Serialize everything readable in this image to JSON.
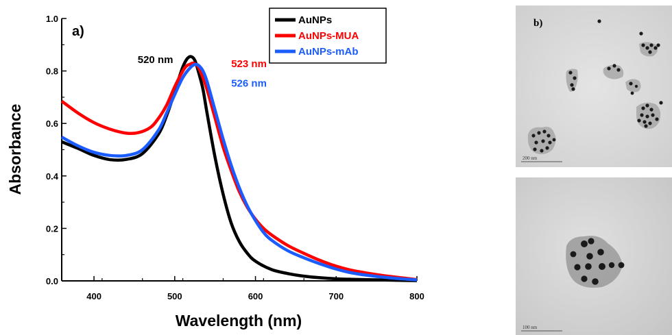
{
  "chart_data": {
    "type": "line",
    "panel_label": "a)",
    "xlabel": "Wavelength (nm)",
    "ylabel": "Absorbance",
    "xlim": [
      360,
      800
    ],
    "ylim": [
      0,
      1.0
    ],
    "x_ticks": [
      400,
      500,
      600,
      700,
      800
    ],
    "x_tick_labels": [
      "400",
      "500",
      "600",
      "700",
      "800"
    ],
    "y_ticks": [
      0.0,
      0.2,
      0.4,
      0.6,
      0.8,
      1.0
    ],
    "y_tick_labels": [
      "0.0",
      "0.2",
      "0.4",
      "0.6",
      "0.8",
      "1.0"
    ],
    "grid": false,
    "legend_position": "top-right",
    "series": [
      {
        "name": "AuNPs",
        "color": "#000000",
        "x": [
          360,
          380,
          400,
          420,
          440,
          460,
          480,
          490,
          500,
          505,
          510,
          515,
          520,
          525,
          530,
          535,
          540,
          550,
          560,
          570,
          580,
          590,
          600,
          620,
          640,
          660,
          680,
          700,
          720,
          750,
          780,
          800
        ],
        "y": [
          0.53,
          0.505,
          0.478,
          0.462,
          0.463,
          0.485,
          0.56,
          0.63,
          0.72,
          0.77,
          0.815,
          0.845,
          0.855,
          0.84,
          0.79,
          0.73,
          0.64,
          0.47,
          0.33,
          0.22,
          0.15,
          0.105,
          0.075,
          0.043,
          0.028,
          0.018,
          0.012,
          0.008,
          0.006,
          0.004,
          0.002,
          0.001
        ]
      },
      {
        "name": "AuNPs-MUA",
        "color": "#ff0000",
        "x": [
          360,
          380,
          400,
          420,
          440,
          455,
          470,
          480,
          490,
          500,
          510,
          515,
          520,
          523,
          528,
          533,
          540,
          550,
          560,
          570,
          580,
          590,
          600,
          610,
          620,
          640,
          660,
          680,
          700,
          720,
          750,
          780,
          800
        ],
        "y": [
          0.685,
          0.64,
          0.603,
          0.578,
          0.563,
          0.565,
          0.585,
          0.62,
          0.67,
          0.74,
          0.8,
          0.82,
          0.827,
          0.83,
          0.82,
          0.79,
          0.73,
          0.62,
          0.51,
          0.42,
          0.34,
          0.28,
          0.235,
          0.2,
          0.175,
          0.135,
          0.105,
          0.078,
          0.056,
          0.04,
          0.024,
          0.012,
          0.005
        ]
      },
      {
        "name": "AuNPs-mAb",
        "color": "#1a5cff",
        "x": [
          360,
          380,
          400,
          420,
          440,
          460,
          480,
          490,
          500,
          510,
          520,
          526,
          530,
          535,
          540,
          550,
          560,
          570,
          580,
          590,
          600,
          610,
          620,
          640,
          660,
          680,
          700,
          720,
          750,
          780,
          800
        ],
        "y": [
          0.548,
          0.515,
          0.49,
          0.478,
          0.478,
          0.5,
          0.575,
          0.64,
          0.71,
          0.775,
          0.815,
          0.825,
          0.82,
          0.8,
          0.76,
          0.65,
          0.54,
          0.44,
          0.355,
          0.285,
          0.23,
          0.185,
          0.155,
          0.115,
          0.088,
          0.065,
          0.045,
          0.03,
          0.017,
          0.008,
          0.004
        ]
      }
    ],
    "annotations": [
      {
        "text": "520 nm",
        "color": "#000000",
        "x": 498,
        "y": 0.83
      },
      {
        "text": "523 nm",
        "color": "#ff0000",
        "x": 570,
        "y": 0.815
      },
      {
        "text": "526 nm",
        "color": "#1a5cff",
        "x": 570,
        "y": 0.74
      }
    ]
  },
  "tem": {
    "panel_label": "b)",
    "top_scale_label": "200 nm",
    "bottom_scale_label": "100 nm"
  }
}
